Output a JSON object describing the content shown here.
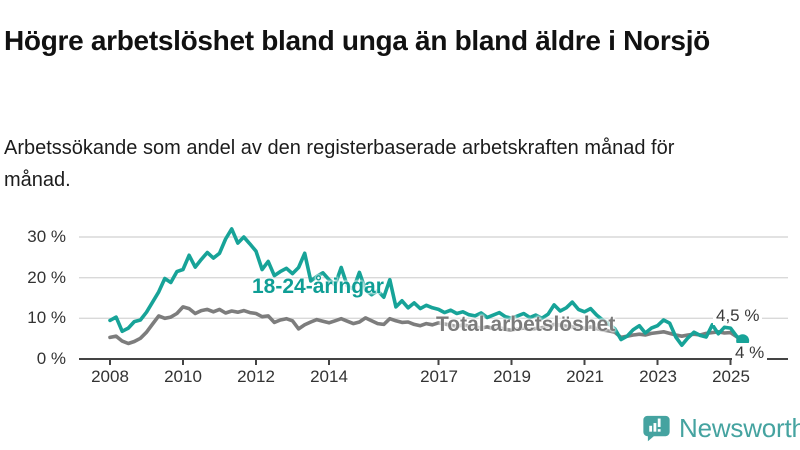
{
  "header": {
    "title": "Högre arbetslöshet bland unga än bland äldre i Norsjö",
    "subtitle": "Arbetssökande som andel av den registerbaserade arbetskraften månad för månad."
  },
  "chart_data": {
    "type": "line",
    "x_unit": "years (monthly data plotted at 2-month resolution)",
    "x_start": 2008.0,
    "x_step_years": 0.1666667,
    "xlim": [
      2007.2,
      2026.6
    ],
    "ylim": [
      0,
      34
    ],
    "grid": "horizontal",
    "grid_color": "#d9d9d9",
    "axis_color": "#444444",
    "y_ticks": [
      {
        "value": 0,
        "label": "0 %"
      },
      {
        "value": 10,
        "label": "10 %"
      },
      {
        "value": 20,
        "label": "20 %"
      },
      {
        "value": 30,
        "label": "30 %"
      }
    ],
    "x_ticks": [
      {
        "value": 2008,
        "label": "2008"
      },
      {
        "value": 2010,
        "label": "2010"
      },
      {
        "value": 2012,
        "label": "2012"
      },
      {
        "value": 2014,
        "label": "2014"
      },
      {
        "value": 2017,
        "label": "2017"
      },
      {
        "value": 2019,
        "label": "2019"
      },
      {
        "value": 2021,
        "label": "2021"
      },
      {
        "value": 2023,
        "label": "2023"
      },
      {
        "value": 2025,
        "label": "2025"
      }
    ],
    "series": [
      {
        "name": "Total arbetslöshet",
        "color": "#7d7d7d",
        "end_label": "4 %",
        "end_value": 4.0,
        "marker_end": false,
        "values": [
          5.3,
          5.6,
          4.4,
          3.8,
          4.3,
          5.1,
          6.6,
          8.6,
          10.6,
          10.0,
          10.3,
          11.2,
          12.8,
          12.4,
          11.2,
          11.9,
          12.2,
          11.6,
          12.2,
          11.3,
          11.8,
          11.5,
          11.9,
          11.4,
          11.2,
          10.4,
          10.6,
          9.0,
          9.6,
          9.9,
          9.4,
          7.4,
          8.4,
          9.1,
          9.7,
          9.3,
          8.9,
          9.4,
          9.9,
          9.3,
          8.7,
          9.1,
          10.1,
          9.4,
          8.7,
          8.5,
          9.9,
          9.4,
          9.0,
          9.1,
          8.5,
          8.2,
          8.7,
          8.4,
          8.9,
          8.6,
          8.3,
          8.0,
          8.4,
          8.1,
          7.9,
          7.6,
          7.9,
          7.5,
          7.7,
          7.3,
          7.1,
          7.4,
          7.6,
          7.3,
          7.5,
          7.7,
          7.9,
          8.5,
          8.3,
          8.1,
          7.9,
          7.7,
          7.6,
          7.9,
          7.5,
          7.1,
          6.9,
          6.6,
          5.3,
          5.6,
          5.9,
          6.1,
          5.9,
          6.3,
          6.5,
          6.7,
          6.3,
          5.9,
          5.6,
          5.9,
          6.1,
          5.9,
          6.3,
          6.5,
          6.7,
          6.4,
          6.5,
          5.5,
          4.0
        ]
      },
      {
        "name": "18-24-åringar",
        "color": "#17a398",
        "end_label": "4,5 %",
        "end_value": 4.5,
        "marker_end": true,
        "values": [
          9.5,
          10.3,
          6.8,
          7.6,
          9.2,
          9.6,
          11.5,
          14.0,
          16.5,
          19.8,
          18.8,
          21.5,
          22.0,
          25.5,
          22.6,
          24.5,
          26.2,
          24.8,
          26.0,
          29.5,
          32.0,
          28.5,
          30.0,
          28.3,
          26.5,
          22.0,
          24.0,
          20.5,
          21.5,
          22.3,
          21.0,
          22.5,
          26.0,
          19.2,
          20.3,
          21.2,
          19.5,
          18.2,
          22.5,
          18.0,
          17.2,
          21.3,
          17.0,
          15.8,
          16.8,
          15.2,
          19.5,
          12.8,
          14.3,
          12.6,
          13.8,
          12.4,
          13.2,
          12.6,
          12.2,
          11.4,
          12.0,
          11.2,
          11.6,
          10.9,
          10.6,
          11.3,
          10.2,
          10.8,
          11.4,
          10.4,
          10.0,
          10.6,
          11.2,
          10.2,
          10.8,
          10.0,
          11.0,
          13.3,
          11.8,
          12.6,
          14.0,
          12.2,
          11.6,
          12.4,
          10.8,
          9.6,
          8.6,
          7.4,
          4.8,
          5.6,
          7.2,
          8.2,
          6.4,
          7.6,
          8.2,
          9.6,
          8.8,
          5.4,
          3.4,
          5.2,
          6.6,
          5.8,
          5.4,
          8.4,
          6.2,
          7.8,
          7.6,
          5.6,
          4.5
        ]
      }
    ]
  },
  "branding": {
    "logo_text": "Newsworthy",
    "logo_color": "#45a3a0"
  }
}
